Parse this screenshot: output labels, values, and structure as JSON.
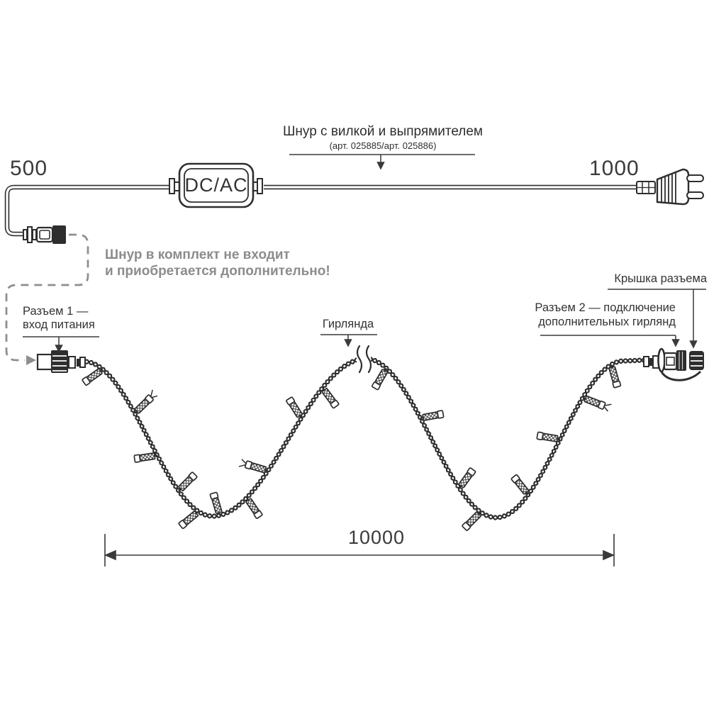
{
  "title": {
    "line1": "Шнур с вилкой и выпрямителем",
    "line2": "(арт. 025885/арт. 025886)"
  },
  "adapter": {
    "label": "DC/AC"
  },
  "dimensions": {
    "cord_left": "500",
    "cord_right": "1000",
    "garland_total": "10000"
  },
  "note": {
    "line1": "Шнур в комплект не входит",
    "line2": "и приобретается дополнительно!"
  },
  "callouts": {
    "connector1_line1": "Разъем 1 —",
    "connector1_line2": "вход питания",
    "garland": "Гирлянда",
    "cap": "Крышка разъема",
    "connector2_line1": "Разъем 2 — подключение",
    "connector2_line2": "дополнительных гирлянд"
  },
  "colors": {
    "ink": "#2e2e2e",
    "gray": "#8c8c8c",
    "background": "#ffffff"
  }
}
